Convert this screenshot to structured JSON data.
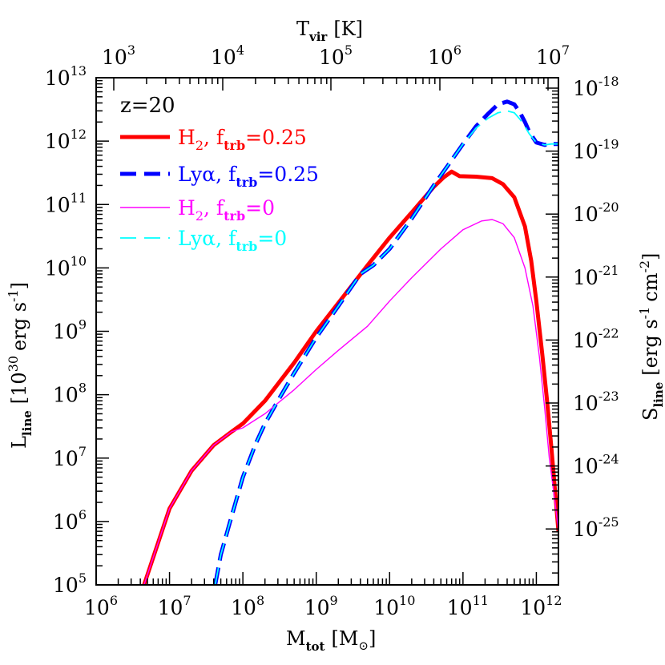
{
  "chart_data": {
    "type": "line",
    "annotation": "z=20",
    "x_axis": {
      "label": "M",
      "label_sub": "tot",
      "label_unit": "[M",
      "label_unit_tail": "]",
      "scale": "log",
      "range": [
        1000000,
        2000000000000
      ],
      "tick_labels": [
        {
          "value": 1000000,
          "base": "10",
          "exp": "6"
        },
        {
          "value": 10000000,
          "base": "10",
          "exp": "7"
        },
        {
          "value": 100000000,
          "base": "10",
          "exp": "8"
        },
        {
          "value": 1000000000,
          "base": "10",
          "exp": "9"
        },
        {
          "value": 10000000000,
          "base": "10",
          "exp": "10"
        },
        {
          "value": 100000000000,
          "base": "10",
          "exp": "11"
        },
        {
          "value": 1000000000000,
          "base": "10",
          "exp": "12"
        }
      ]
    },
    "top_axis": {
      "label": "T",
      "label_sub": "vir",
      "label_unit": "[K]",
      "scale": "log",
      "tick_labels": [
        {
          "value": 1000,
          "base": "10",
          "exp": "3"
        },
        {
          "value": 10000,
          "base": "10",
          "exp": "4"
        },
        {
          "value": 100000,
          "base": "10",
          "exp": "5"
        },
        {
          "value": 1000000,
          "base": "10",
          "exp": "6"
        },
        {
          "value": 10000000,
          "base": "10",
          "exp": "7"
        }
      ]
    },
    "y_axis": {
      "label": "L",
      "label_sub": "line",
      "label_unit": "[10",
      "label_unit_exp": "30",
      "label_unit_tail": "erg s",
      "label_unit_tail_exp": "-1",
      "label_unit_end": "]",
      "scale": "log",
      "range": [
        100000,
        10000000000000
      ],
      "tick_labels": [
        {
          "value": 100000,
          "base": "10",
          "exp": "5"
        },
        {
          "value": 1000000,
          "base": "10",
          "exp": "6"
        },
        {
          "value": 10000000,
          "base": "10",
          "exp": "7"
        },
        {
          "value": 100000000,
          "base": "10",
          "exp": "8"
        },
        {
          "value": 1000000000,
          "base": "10",
          "exp": "9"
        },
        {
          "value": 10000000000,
          "base": "10",
          "exp": "10"
        },
        {
          "value": 100000000000,
          "base": "10",
          "exp": "11"
        },
        {
          "value": 1000000000000,
          "base": "10",
          "exp": "12"
        },
        {
          "value": 10000000000000,
          "base": "10",
          "exp": "13"
        }
      ]
    },
    "right_axis": {
      "label": "S",
      "label_sub": "line",
      "label_unit": "[erg s",
      "label_unit_exp1": "-1",
      "label_unit_mid": "cm",
      "label_unit_exp2": "-2",
      "label_unit_end": "]",
      "scale": "log",
      "tick_labels": [
        {
          "value": 1e-25,
          "base": "10",
          "exp": "-25"
        },
        {
          "value": 1e-24,
          "base": "10",
          "exp": "-24"
        },
        {
          "value": 1e-23,
          "base": "10",
          "exp": "-23"
        },
        {
          "value": 1e-22,
          "base": "10",
          "exp": "-22"
        },
        {
          "value": 1e-21,
          "base": "10",
          "exp": "-21"
        },
        {
          "value": 1e-20,
          "base": "10",
          "exp": "-20"
        },
        {
          "value": 1e-19,
          "base": "10",
          "exp": "-19"
        },
        {
          "value": 1e-18,
          "base": "10",
          "exp": "-18"
        }
      ]
    },
    "legend_placement": "top-left",
    "series": [
      {
        "name": "H2, ftrb=0.25",
        "legend_main": "H",
        "legend_main_sub": "2",
        "legend_f": ", f",
        "legend_f_sub": "trb",
        "legend_val": "=0.25",
        "color": "#ff0000",
        "style": "solid-thick",
        "points": [
          [
            4500000.0,
            100000.0
          ],
          [
            10000000.0,
            1600000.0
          ],
          [
            20000000.0,
            6300000.0
          ],
          [
            40000000.0,
            16000000.0
          ],
          [
            70000000.0,
            26000000.0
          ],
          [
            100000000.0,
            35000000.0
          ],
          [
            200000000.0,
            80000000.0
          ],
          [
            500000000.0,
            320000000.0
          ],
          [
            1000000000.0,
            1000000000.0
          ],
          [
            2000000000.0,
            2800000000.0
          ],
          [
            5000000000.0,
            11000000000.0
          ],
          [
            10000000000.0,
            30000000000.0
          ],
          [
            20000000000.0,
            75000000000.0
          ],
          [
            40000000000.0,
            190000000000.0
          ],
          [
            55000000000.0,
            270000000000.0
          ],
          [
            70000000000.0,
            330000000000.0
          ],
          [
            90000000000.0,
            280000000000.0
          ],
          [
            150000000000.0,
            275000000000.0
          ],
          [
            250000000000.0,
            260000000000.0
          ],
          [
            350000000000.0,
            210000000000.0
          ],
          [
            500000000000.0,
            130000000000.0
          ],
          [
            700000000000.0,
            45000000000.0
          ],
          [
            850000000000.0,
            13000000000.0
          ],
          [
            1000000000000.0,
            3000000000.0
          ],
          [
            1200000000000.0,
            450000000.0
          ],
          [
            1400000000000.0,
            80000000.0
          ],
          [
            1600000000000.0,
            15000000.0
          ],
          [
            1800000000000.0,
            3000000.0
          ],
          [
            2000000000000.0,
            700000.0
          ]
        ]
      },
      {
        "name": "Lyα, ftrb=0.25",
        "legend_main": "Lyα",
        "legend_main_sub": "",
        "legend_f": ", f",
        "legend_f_sub": "trb",
        "legend_val": "=0.25",
        "color": "#0000ff",
        "style": "dashed-thick",
        "points": [
          [
            42000000.0,
            100000.0
          ],
          [
            50000000.0,
            300000.0
          ],
          [
            70000000.0,
            1200000.0
          ],
          [
            100000000.0,
            5000000.0
          ],
          [
            150000000.0,
            17000000.0
          ],
          [
            200000000.0,
            35000000.0
          ],
          [
            300000000.0,
            80000000.0
          ],
          [
            500000000.0,
            220000000.0
          ],
          [
            1000000000.0,
            800000000.0
          ],
          [
            2000000000.0,
            2500000000.0
          ],
          [
            4000000000.0,
            8000000000.0
          ],
          [
            6000000000.0,
            11000000000.0
          ],
          [
            10000000000.0,
            20000000000.0
          ],
          [
            20000000000.0,
            60000000000.0
          ],
          [
            40000000000.0,
            200000000000.0
          ],
          [
            70000000000.0,
            500000000000.0
          ],
          [
            100000000000.0,
            900000000000.0
          ],
          [
            150000000000.0,
            1700000000000.0
          ],
          [
            220000000000.0,
            2700000000000.0
          ],
          [
            300000000000.0,
            3800000000000.0
          ],
          [
            400000000000.0,
            4200000000000.0
          ],
          [
            500000000000.0,
            3800000000000.0
          ],
          [
            600000000000.0,
            2800000000000.0
          ],
          [
            700000000000.0,
            2000000000000.0
          ],
          [
            800000000000.0,
            1400000000000.0
          ],
          [
            1000000000000.0,
            950000000000.0
          ],
          [
            1300000000000.0,
            870000000000.0
          ],
          [
            1600000000000.0,
            900000000000.0
          ],
          [
            2000000000000.0,
            900000000000.0
          ]
        ]
      },
      {
        "name": "H2, ftrb=0",
        "legend_main": "H",
        "legend_main_sub": "2",
        "legend_f": ", f",
        "legend_f_sub": "trb",
        "legend_val": "=0",
        "color": "#ff00ff",
        "style": "solid-thin",
        "points": [
          [
            4500000.0,
            100000.0
          ],
          [
            10000000.0,
            1600000.0
          ],
          [
            20000000.0,
            6300000.0
          ],
          [
            40000000.0,
            16000000.0
          ],
          [
            70000000.0,
            26000000.0
          ],
          [
            100000000.0,
            30000000.0
          ],
          [
            200000000.0,
            50000000.0
          ],
          [
            500000000.0,
            120000000.0
          ],
          [
            1000000000.0,
            250000000.0
          ],
          [
            2000000000.0,
            500000000.0
          ],
          [
            5000000000.0,
            1200000000.0
          ],
          [
            10000000000.0,
            3000000000.0
          ],
          [
            20000000000.0,
            7000000000.0
          ],
          [
            50000000000.0,
            20000000000.0
          ],
          [
            100000000000.0,
            40000000000.0
          ],
          [
            180000000000.0,
            55000000000.0
          ],
          [
            250000000000.0,
            58000000000.0
          ],
          [
            350000000000.0,
            50000000000.0
          ],
          [
            500000000000.0,
            30000000000.0
          ],
          [
            700000000000.0,
            10000000000.0
          ],
          [
            900000000000.0,
            2500000000.0
          ],
          [
            1100000000000.0,
            400000000.0
          ],
          [
            1300000000000.0,
            60000000.0
          ],
          [
            1500000000000.0,
            10000000.0
          ],
          [
            1800000000000.0,
            2000000.0
          ],
          [
            2000000000000.0,
            700000.0
          ]
        ]
      },
      {
        "name": "Lyα, ftrb=0",
        "legend_main": "Lyα",
        "legend_main_sub": "",
        "legend_f": ", f",
        "legend_f_sub": "trb",
        "legend_val": "=0",
        "color": "#00ffff",
        "style": "dashed-thin",
        "points": [
          [
            42000000.0,
            100000.0
          ],
          [
            50000000.0,
            300000.0
          ],
          [
            70000000.0,
            1200000.0
          ],
          [
            100000000.0,
            5000000.0
          ],
          [
            150000000.0,
            17000000.0
          ],
          [
            200000000.0,
            35000000.0
          ],
          [
            300000000.0,
            80000000.0
          ],
          [
            500000000.0,
            220000000.0
          ],
          [
            1000000000.0,
            800000000.0
          ],
          [
            2000000000.0,
            2500000000.0
          ],
          [
            4000000000.0,
            8000000000.0
          ],
          [
            6000000000.0,
            11000000000.0
          ],
          [
            10000000000.0,
            20000000000.0
          ],
          [
            20000000000.0,
            60000000000.0
          ],
          [
            40000000000.0,
            200000000000.0
          ],
          [
            70000000000.0,
            500000000000.0
          ],
          [
            100000000000.0,
            900000000000.0
          ],
          [
            150000000000.0,
            1600000000000.0
          ],
          [
            220000000000.0,
            2300000000000.0
          ],
          [
            300000000000.0,
            2800000000000.0
          ],
          [
            400000000000.0,
            3000000000000.0
          ],
          [
            500000000000.0,
            2800000000000.0
          ],
          [
            600000000000.0,
            2200000000000.0
          ],
          [
            700000000000.0,
            1700000000000.0
          ],
          [
            800000000000.0,
            1300000000000.0
          ],
          [
            1000000000000.0,
            950000000000.0
          ],
          [
            1300000000000.0,
            870000000000.0
          ],
          [
            1600000000000.0,
            900000000000.0
          ],
          [
            2000000000000.0,
            900000000000.0
          ]
        ]
      }
    ]
  }
}
